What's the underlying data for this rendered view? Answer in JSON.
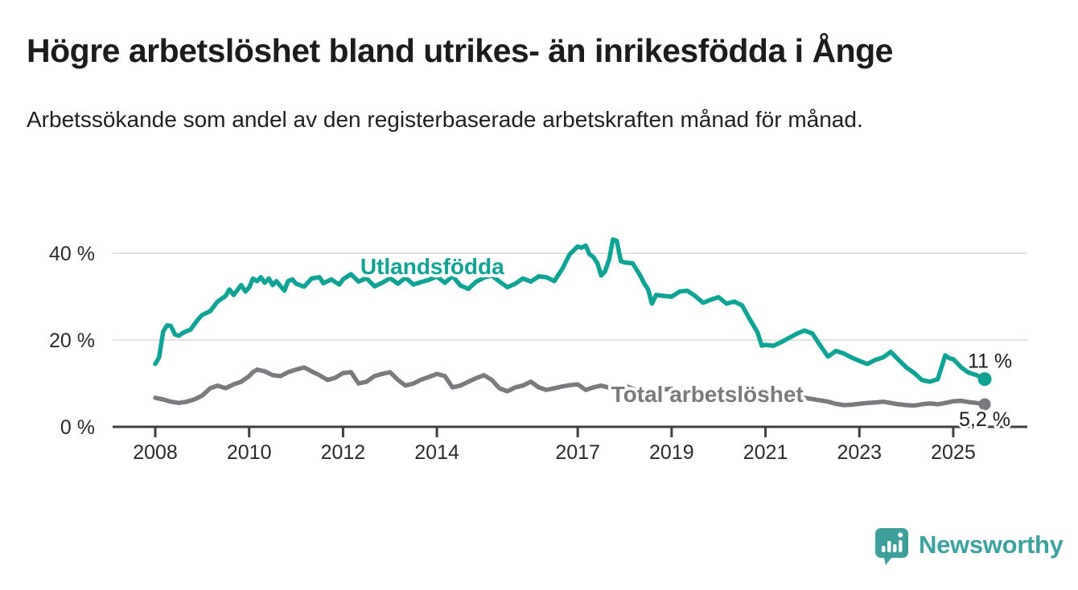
{
  "header": {
    "title": "Högre arbetslöshet bland utrikes- än inrikesfödda i Ånge",
    "subtitle": "Arbetssökande som andel av den registerbaserade arbetskraften månad för månad."
  },
  "colors": {
    "foreign_born_line": "#0fa396",
    "total_line": "#7b7a7e",
    "grid": "#dcdcdc",
    "axis": "#3f3f3f",
    "tick_text": "#2b2b2b",
    "end_label_text": "#1c1c1c",
    "logo_teal": "#3e9f9c"
  },
  "chart_data": {
    "type": "line",
    "title": "Högre arbetslöshet bland utrikes- än inrikesfödda i Ånge",
    "subtitle": "Arbetssökande som andel av den registerbaserade arbetskraften månad för månad.",
    "x_unit": "decimal year (monthly data)",
    "y_unit": "percent of registered labour force",
    "ylim": [
      0,
      44
    ],
    "grid": "horizontal",
    "yticks": [
      {
        "value": 0,
        "label": "0 %"
      },
      {
        "value": 20,
        "label": "20 %"
      },
      {
        "value": 40,
        "label": "40 %"
      }
    ],
    "xticks": [
      {
        "value": 2008,
        "label": "2008"
      },
      {
        "value": 2010,
        "label": "2010"
      },
      {
        "value": 2012,
        "label": "2012"
      },
      {
        "value": 2014,
        "label": "2014"
      },
      {
        "value": 2017,
        "label": "2017"
      },
      {
        "value": 2019,
        "label": "2019"
      },
      {
        "value": 2021,
        "label": "2021"
      },
      {
        "value": 2023,
        "label": "2023"
      },
      {
        "value": 2025,
        "label": "2025"
      }
    ],
    "series": [
      {
        "name": "Utlandsfödda",
        "color": "#0fa396",
        "end_label": "11 %",
        "end_value": 11,
        "inline_label_anchor": {
          "year": 2013.9,
          "value": 35.2
        },
        "points": [
          [
            2008.0,
            14.5
          ],
          [
            2008.08,
            16.0
          ],
          [
            2008.17,
            22.0
          ],
          [
            2008.25,
            23.4
          ],
          [
            2008.33,
            23.3
          ],
          [
            2008.42,
            21.3
          ],
          [
            2008.5,
            21.0
          ],
          [
            2008.58,
            21.6
          ],
          [
            2008.67,
            22.1
          ],
          [
            2008.75,
            22.4
          ],
          [
            2008.83,
            23.6
          ],
          [
            2008.92,
            24.9
          ],
          [
            2009.0,
            25.8
          ],
          [
            2009.17,
            26.7
          ],
          [
            2009.33,
            28.9
          ],
          [
            2009.5,
            30.2
          ],
          [
            2009.58,
            31.7
          ],
          [
            2009.67,
            30.4
          ],
          [
            2009.83,
            32.7
          ],
          [
            2009.92,
            31.2
          ],
          [
            2010.0,
            32.1
          ],
          [
            2010.08,
            34.2
          ],
          [
            2010.17,
            33.6
          ],
          [
            2010.25,
            34.5
          ],
          [
            2010.33,
            33.2
          ],
          [
            2010.42,
            34.2
          ],
          [
            2010.5,
            32.7
          ],
          [
            2010.58,
            33.6
          ],
          [
            2010.75,
            31.4
          ],
          [
            2010.83,
            33.6
          ],
          [
            2010.92,
            34.0
          ],
          [
            2011.0,
            33.0
          ],
          [
            2011.17,
            32.3
          ],
          [
            2011.33,
            34.2
          ],
          [
            2011.5,
            34.5
          ],
          [
            2011.58,
            33.1
          ],
          [
            2011.75,
            34.0
          ],
          [
            2011.92,
            32.8
          ],
          [
            2012.0,
            34.0
          ],
          [
            2012.17,
            35.2
          ],
          [
            2012.33,
            33.5
          ],
          [
            2012.5,
            34.3
          ],
          [
            2012.67,
            32.4
          ],
          [
            2012.83,
            33.2
          ],
          [
            2013.0,
            34.3
          ],
          [
            2013.17,
            33.0
          ],
          [
            2013.33,
            34.4
          ],
          [
            2013.5,
            32.8
          ],
          [
            2013.67,
            33.4
          ],
          [
            2013.83,
            33.9
          ],
          [
            2014.0,
            34.7
          ],
          [
            2014.17,
            33.2
          ],
          [
            2014.33,
            34.8
          ],
          [
            2014.5,
            32.6
          ],
          [
            2014.67,
            31.8
          ],
          [
            2014.83,
            33.4
          ],
          [
            2015.0,
            34.4
          ],
          [
            2015.17,
            34.9
          ],
          [
            2015.33,
            33.5
          ],
          [
            2015.5,
            32.2
          ],
          [
            2015.67,
            33.0
          ],
          [
            2015.83,
            34.2
          ],
          [
            2016.0,
            33.5
          ],
          [
            2016.17,
            34.7
          ],
          [
            2016.33,
            34.5
          ],
          [
            2016.5,
            33.6
          ],
          [
            2016.67,
            36.4
          ],
          [
            2016.83,
            39.8
          ],
          [
            2017.0,
            41.6
          ],
          [
            2017.08,
            41.3
          ],
          [
            2017.17,
            41.8
          ],
          [
            2017.25,
            39.8
          ],
          [
            2017.33,
            39.2
          ],
          [
            2017.42,
            37.7
          ],
          [
            2017.5,
            34.9
          ],
          [
            2017.58,
            35.8
          ],
          [
            2017.67,
            38.6
          ],
          [
            2017.75,
            43.2
          ],
          [
            2017.83,
            42.9
          ],
          [
            2017.92,
            38.2
          ],
          [
            2018.0,
            37.9
          ],
          [
            2018.17,
            37.7
          ],
          [
            2018.33,
            34.9
          ],
          [
            2018.42,
            33.0
          ],
          [
            2018.5,
            31.7
          ],
          [
            2018.58,
            28.4
          ],
          [
            2018.67,
            30.4
          ],
          [
            2018.83,
            30.2
          ],
          [
            2019.0,
            30.0
          ],
          [
            2019.17,
            31.2
          ],
          [
            2019.33,
            31.4
          ],
          [
            2019.5,
            30.2
          ],
          [
            2019.67,
            28.6
          ],
          [
            2019.83,
            29.3
          ],
          [
            2020.0,
            29.9
          ],
          [
            2020.17,
            28.4
          ],
          [
            2020.33,
            28.9
          ],
          [
            2020.5,
            28.0
          ],
          [
            2020.67,
            24.7
          ],
          [
            2020.83,
            21.8
          ],
          [
            2020.92,
            18.7
          ],
          [
            2021.0,
            18.9
          ],
          [
            2021.17,
            18.7
          ],
          [
            2021.33,
            19.5
          ],
          [
            2021.5,
            20.5
          ],
          [
            2021.67,
            21.5
          ],
          [
            2021.83,
            22.2
          ],
          [
            2022.0,
            21.5
          ],
          [
            2022.17,
            18.7
          ],
          [
            2022.33,
            16.2
          ],
          [
            2022.5,
            17.5
          ],
          [
            2022.67,
            16.9
          ],
          [
            2022.83,
            16.0
          ],
          [
            2023.0,
            15.2
          ],
          [
            2023.17,
            14.5
          ],
          [
            2023.33,
            15.4
          ],
          [
            2023.5,
            16.0
          ],
          [
            2023.67,
            17.3
          ],
          [
            2023.83,
            15.5
          ],
          [
            2024.0,
            13.7
          ],
          [
            2024.17,
            12.4
          ],
          [
            2024.33,
            10.8
          ],
          [
            2024.5,
            10.4
          ],
          [
            2024.67,
            11.0
          ],
          [
            2024.83,
            16.5
          ],
          [
            2024.92,
            15.8
          ],
          [
            2025.0,
            15.6
          ],
          [
            2025.17,
            13.7
          ],
          [
            2025.33,
            12.5
          ],
          [
            2025.5,
            11.9
          ],
          [
            2025.67,
            11.0
          ]
        ]
      },
      {
        "name": "Total arbetslöshet",
        "color": "#7b7a7e",
        "end_label": "5,2 %",
        "end_value": 5.2,
        "inline_label_anchor": {
          "year": 2019.76,
          "value": 5.7
        },
        "points": [
          [
            2008.0,
            6.7
          ],
          [
            2008.17,
            6.3
          ],
          [
            2008.33,
            5.8
          ],
          [
            2008.5,
            5.5
          ],
          [
            2008.67,
            5.8
          ],
          [
            2008.83,
            6.3
          ],
          [
            2009.0,
            7.2
          ],
          [
            2009.17,
            8.9
          ],
          [
            2009.33,
            9.5
          ],
          [
            2009.5,
            8.9
          ],
          [
            2009.67,
            9.8
          ],
          [
            2009.83,
            10.4
          ],
          [
            2010.0,
            11.7
          ],
          [
            2010.08,
            12.6
          ],
          [
            2010.17,
            13.2
          ],
          [
            2010.33,
            12.8
          ],
          [
            2010.5,
            11.9
          ],
          [
            2010.67,
            11.7
          ],
          [
            2010.83,
            12.6
          ],
          [
            2011.0,
            13.2
          ],
          [
            2011.17,
            13.7
          ],
          [
            2011.33,
            12.8
          ],
          [
            2011.5,
            11.9
          ],
          [
            2011.67,
            10.8
          ],
          [
            2011.83,
            11.3
          ],
          [
            2012.0,
            12.4
          ],
          [
            2012.17,
            12.6
          ],
          [
            2012.33,
            10.0
          ],
          [
            2012.5,
            10.4
          ],
          [
            2012.67,
            11.7
          ],
          [
            2012.83,
            12.2
          ],
          [
            2013.0,
            12.6
          ],
          [
            2013.17,
            10.8
          ],
          [
            2013.33,
            9.5
          ],
          [
            2013.5,
            10.0
          ],
          [
            2013.67,
            10.9
          ],
          [
            2013.83,
            11.5
          ],
          [
            2014.0,
            12.2
          ],
          [
            2014.17,
            11.7
          ],
          [
            2014.33,
            9.1
          ],
          [
            2014.5,
            9.5
          ],
          [
            2014.67,
            10.4
          ],
          [
            2014.83,
            11.2
          ],
          [
            2015.0,
            11.9
          ],
          [
            2015.17,
            10.8
          ],
          [
            2015.33,
            8.9
          ],
          [
            2015.5,
            8.2
          ],
          [
            2015.67,
            9.1
          ],
          [
            2015.83,
            9.5
          ],
          [
            2016.0,
            10.4
          ],
          [
            2016.17,
            9.1
          ],
          [
            2016.33,
            8.5
          ],
          [
            2016.5,
            8.9
          ],
          [
            2016.67,
            9.3
          ],
          [
            2016.83,
            9.6
          ],
          [
            2017.0,
            9.8
          ],
          [
            2017.17,
            8.5
          ],
          [
            2017.33,
            9.1
          ],
          [
            2017.5,
            9.5
          ],
          [
            2017.67,
            9.0
          ],
          [
            2017.83,
            9.3
          ],
          [
            2018.0,
            9.5
          ],
          [
            2018.17,
            8.8
          ],
          [
            2018.33,
            8.3
          ],
          [
            2018.5,
            8.0
          ],
          [
            2018.67,
            8.4
          ],
          [
            2018.83,
            8.6
          ],
          [
            2019.0,
            8.8
          ],
          [
            2019.17,
            8.3
          ],
          [
            2019.33,
            7.9
          ],
          [
            2019.5,
            7.7
          ],
          [
            2019.67,
            7.9
          ],
          [
            2019.83,
            8.1
          ],
          [
            2020.0,
            8.3
          ],
          [
            2020.17,
            8.0
          ],
          [
            2020.33,
            7.8
          ],
          [
            2020.5,
            7.6
          ],
          [
            2020.67,
            7.3
          ],
          [
            2020.83,
            7.1
          ],
          [
            2021.0,
            7.0
          ],
          [
            2021.17,
            6.9
          ],
          [
            2021.33,
            6.8
          ],
          [
            2021.5,
            6.7
          ],
          [
            2021.67,
            6.6
          ],
          [
            2021.83,
            6.7
          ],
          [
            2022.0,
            6.4
          ],
          [
            2022.17,
            6.1
          ],
          [
            2022.33,
            5.8
          ],
          [
            2022.5,
            5.3
          ],
          [
            2022.67,
            5.0
          ],
          [
            2022.83,
            5.1
          ],
          [
            2023.0,
            5.3
          ],
          [
            2023.17,
            5.5
          ],
          [
            2023.33,
            5.6
          ],
          [
            2023.5,
            5.8
          ],
          [
            2023.67,
            5.5
          ],
          [
            2023.83,
            5.2
          ],
          [
            2024.0,
            5.0
          ],
          [
            2024.17,
            4.9
          ],
          [
            2024.33,
            5.2
          ],
          [
            2024.5,
            5.4
          ],
          [
            2024.67,
            5.2
          ],
          [
            2024.83,
            5.5
          ],
          [
            2025.0,
            5.9
          ],
          [
            2025.17,
            6.0
          ],
          [
            2025.33,
            5.7
          ],
          [
            2025.5,
            5.5
          ],
          [
            2025.67,
            5.2
          ]
        ]
      }
    ]
  },
  "footer": {
    "brand": "Newsworthy",
    "logo_icon": "newsworthy-speech-bubble-barchart-icon"
  }
}
